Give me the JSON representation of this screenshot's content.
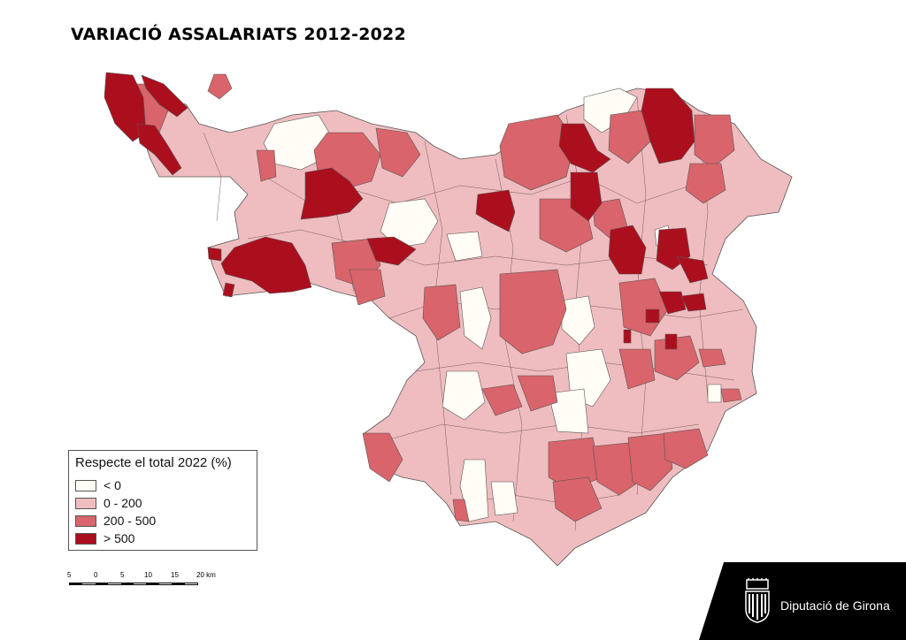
{
  "title": "VARIACIÓ ASSALARIATS 2012-2022",
  "legend": {
    "title": "Respecte el total 2022 (%)",
    "items": [
      {
        "label": "< 0",
        "color": "#fffdf6"
      },
      {
        "label": "0 - 200",
        "color": "#efbdbf"
      },
      {
        "label": "200 - 500",
        "color": "#d9646b"
      },
      {
        "label": "> 500",
        "color": "#ab0f1e"
      }
    ]
  },
  "scalebar": {
    "labels": [
      "5",
      "0",
      "5",
      "10",
      "15",
      "20 km"
    ]
  },
  "footer": {
    "organization": "Diputació de Girona"
  }
}
